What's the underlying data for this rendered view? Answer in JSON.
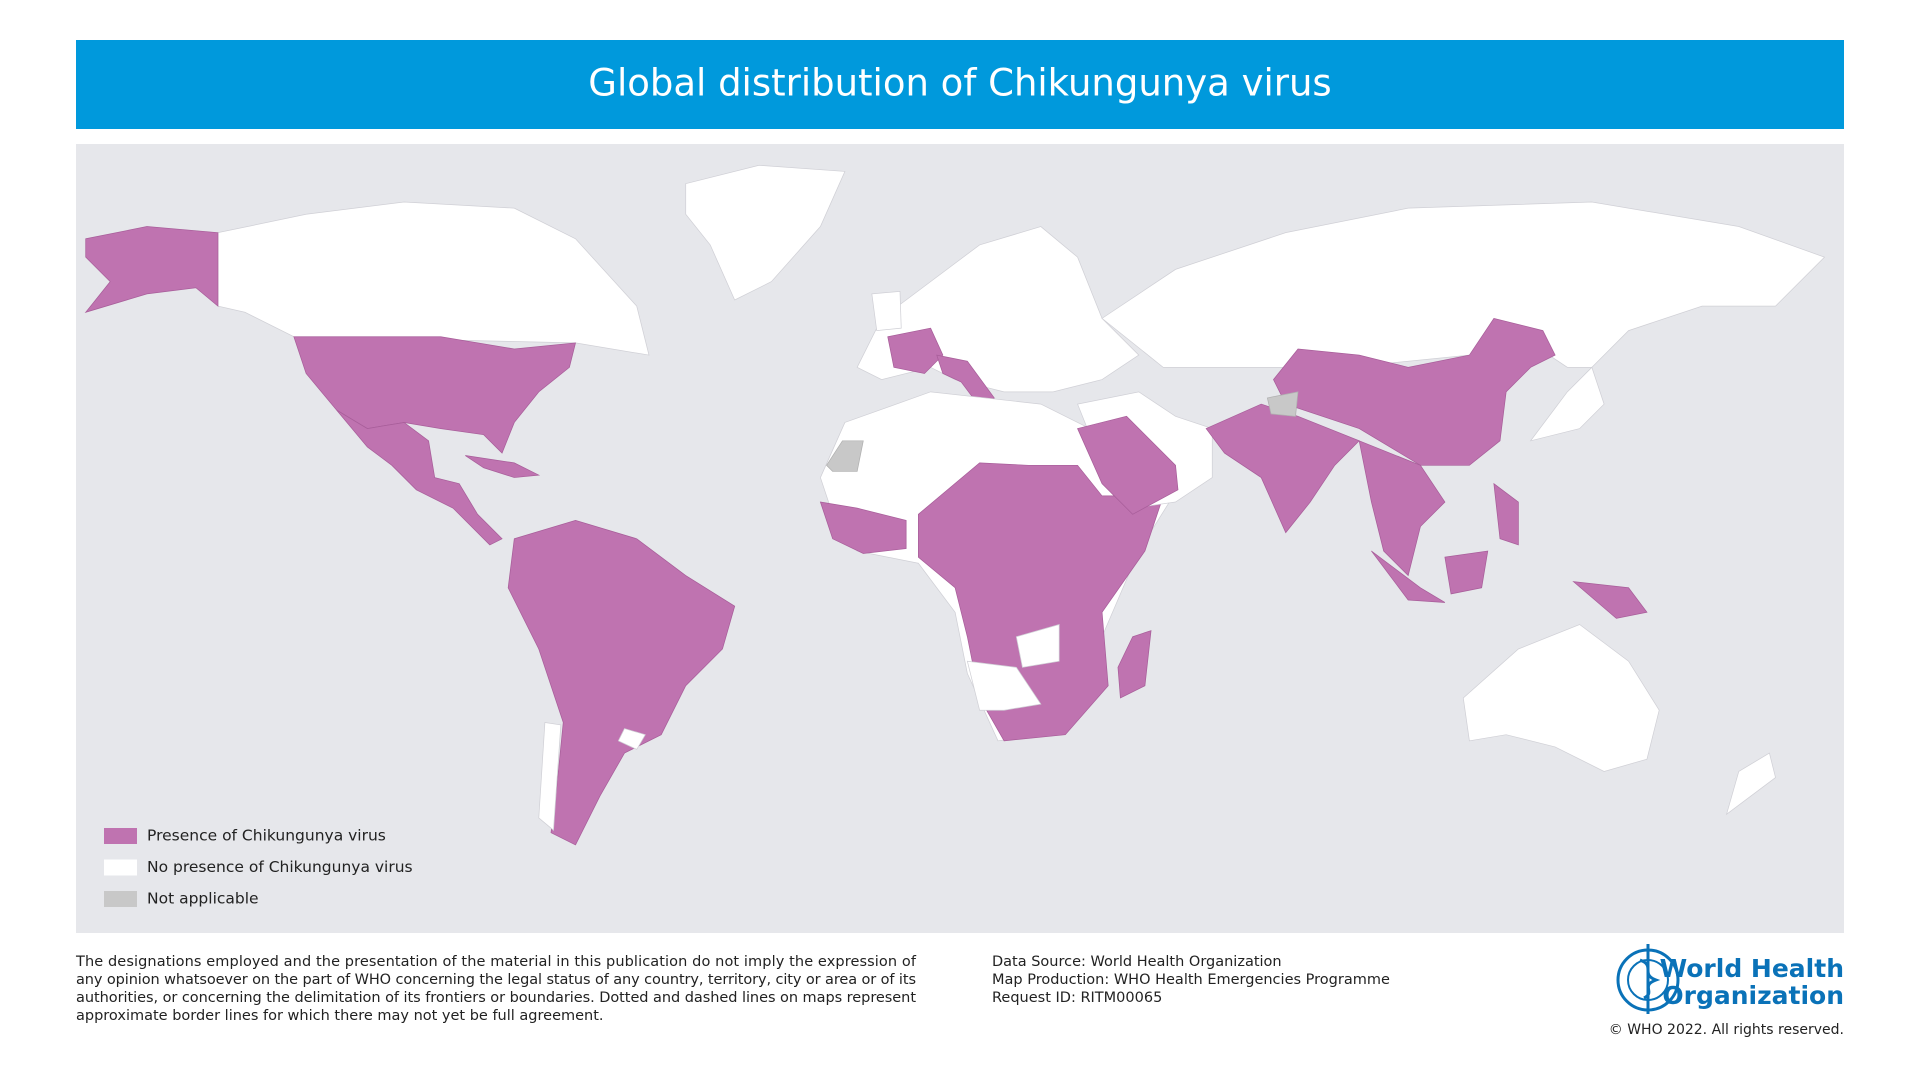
{
  "header": {
    "title": "Global distribution of Chikungunya virus"
  },
  "legend": {
    "items": [
      {
        "label": "Presence of Chikungunya virus",
        "color": "#bf73b0"
      },
      {
        "label": "No presence of Chikungunya virus",
        "color": "#ffffff"
      },
      {
        "label": "Not applicable",
        "color": "#c8c8c8"
      }
    ]
  },
  "footer": {
    "disclaimer": [
      "The designations employed and the presentation of the material in this publication do not imply the expression of",
      "any opinion whatsoever on the part of WHO concerning the legal status of any country, territory, city or area or of its",
      "authorities, or concerning the delimitation of its frontiers or boundaries. Dotted and dashed lines on maps represent",
      "approximate border lines for which there may not yet be full agreement."
    ],
    "source": [
      "Data Source: World Health Organization",
      "Map Production: WHO Health Emergencies Programme",
      "Request ID: RITM00065"
    ],
    "logo": [
      "World Health",
      "Organization"
    ],
    "copyright": "© WHO 2022. All rights reserved."
  }
}
